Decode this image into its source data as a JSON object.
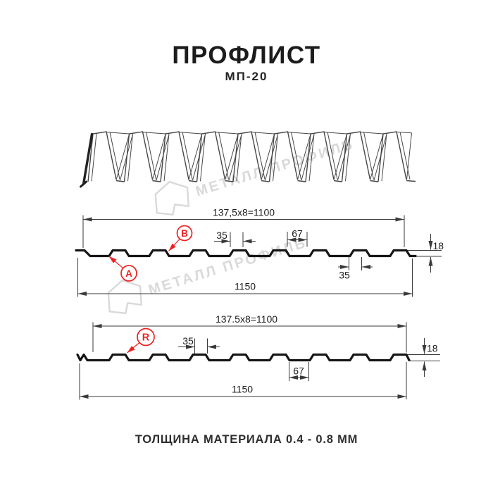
{
  "title": "ПРОФЛИСТ",
  "subtitle": "МП-20",
  "footer": "ТОЛЩИНА МАТЕРИАЛА 0.4 - 0.8 ММ",
  "watermark": {
    "brand": "МЕТАЛЛ ПРОФИЛЬ"
  },
  "colors": {
    "accent_red": "#ed2224",
    "drawing_line": "#3a3a3a",
    "watermark_gray": "#d9d9d9",
    "ink": "#1c1c1c"
  },
  "profile_top": {
    "module_width": "137,5x8=1100",
    "overall_width": "1150",
    "crest_top": "35",
    "valley": "67",
    "height": "18",
    "crest_bottom": "35",
    "marker_a": "A",
    "marker_b": "B"
  },
  "profile_bottom": {
    "module_width": "137.5x8=1100",
    "overall_width": "1150",
    "crest_top": "35",
    "valley": "67",
    "height": "18",
    "marker_r": "R"
  }
}
